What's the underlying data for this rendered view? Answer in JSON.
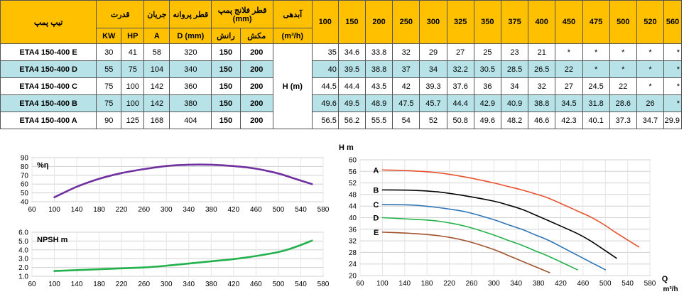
{
  "table": {
    "headers": {
      "model": "تیپ پمپ",
      "power": "قدرت",
      "current": "جریان",
      "impeller": "قطر پروانه",
      "flange": "قطر فلانج پمپ (mm)",
      "flow": "آبدهی",
      "kw": "KW",
      "hp": "HP",
      "amp": "A",
      "impeller_unit": "D (mm)",
      "discharge": "رانش",
      "suction": "مکش",
      "flow_unit": "(m³/h)",
      "flows": [
        "100",
        "150",
        "200",
        "250",
        "300",
        "325",
        "350",
        "375",
        "400",
        "450",
        "475",
        "500",
        "520",
        "560"
      ]
    },
    "head_label": "H (m)",
    "rows": [
      {
        "model": "ETA4 150-400 E",
        "kw": "30",
        "hp": "41",
        "a": "58",
        "d": "320",
        "discharge": "150",
        "suction": "200",
        "h": [
          "35",
          "34.6",
          "33.8",
          "32",
          "29",
          "27",
          "25",
          "23",
          "21",
          "*",
          "*",
          "*",
          "*",
          "*"
        ]
      },
      {
        "model": "ETA4 150-400 D",
        "kw": "55",
        "hp": "75",
        "a": "104",
        "d": "340",
        "discharge": "150",
        "suction": "200",
        "h": [
          "40",
          "39.5",
          "38.8",
          "37",
          "34",
          "32.2",
          "30.5",
          "28.5",
          "26.5",
          "22",
          "*",
          "*",
          "*",
          "*"
        ]
      },
      {
        "model": "ETA4 150-400 C",
        "kw": "75",
        "hp": "100",
        "a": "142",
        "d": "360",
        "discharge": "150",
        "suction": "200",
        "h": [
          "44.5",
          "44.4",
          "43.5",
          "42",
          "39.3",
          "37.6",
          "36",
          "34",
          "32",
          "27",
          "24.5",
          "22",
          "*",
          "*"
        ]
      },
      {
        "model": "ETA4 150-400 B",
        "kw": "75",
        "hp": "100",
        "a": "142",
        "d": "380",
        "discharge": "150",
        "suction": "200",
        "h": [
          "49.6",
          "49.5",
          "48.9",
          "47.5",
          "45.7",
          "44.4",
          "42.9",
          "40.9",
          "38.8",
          "34.5",
          "31.8",
          "28.6",
          "26",
          "*"
        ]
      },
      {
        "model": "ETA4 150-400 A",
        "kw": "90",
        "hp": "125",
        "a": "168",
        "d": "404",
        "discharge": "150",
        "suction": "200",
        "h": [
          "56.5",
          "56.2",
          "55.5",
          "54",
          "52",
          "50.8",
          "49.6",
          "48.2",
          "46.6",
          "42.3",
          "40.1",
          "37.3",
          "34.7",
          "29.9"
        ]
      }
    ]
  },
  "chart_data": [
    {
      "type": "line",
      "title": "%η",
      "xlim": [
        60,
        580
      ],
      "xticks": [
        60,
        100,
        140,
        180,
        220,
        260,
        300,
        340,
        380,
        420,
        460,
        500,
        540,
        580
      ],
      "ylim": [
        40,
        90
      ],
      "yticks": [
        40,
        50,
        60,
        70,
        80,
        90
      ],
      "series": [
        {
          "color": "#7030a0",
          "x": [
            100,
            140,
            180,
            220,
            260,
            300,
            340,
            380,
            420,
            460,
            500,
            530,
            560
          ],
          "y": [
            45,
            57,
            66,
            72.5,
            77,
            80.5,
            82,
            82,
            80.5,
            77.5,
            72,
            66,
            60
          ]
        }
      ]
    },
    {
      "type": "line",
      "title": "NPSH m",
      "xlim": [
        60,
        580
      ],
      "xticks": [
        60,
        100,
        140,
        180,
        220,
        260,
        300,
        340,
        380,
        420,
        460,
        500,
        540,
        580
      ],
      "ylim": [
        1.0,
        6.0
      ],
      "ylabels": [
        "1.0",
        "2.0",
        "3.0",
        "4.0",
        "5.0",
        "6.0"
      ],
      "series": [
        {
          "color": "#22b14c",
          "x": [
            100,
            140,
            180,
            220,
            260,
            300,
            340,
            380,
            420,
            460,
            500,
            520,
            540,
            560
          ],
          "y": [
            1.6,
            1.7,
            1.8,
            1.9,
            2.0,
            2.2,
            2.45,
            2.7,
            2.95,
            3.3,
            3.75,
            4.1,
            4.55,
            5.05
          ]
        }
      ]
    },
    {
      "type": "line",
      "ylabel": "H m",
      "xlabel": "Q",
      "xunit": "m³/h",
      "xlim": [
        60,
        580
      ],
      "xticks": [
        60,
        100,
        140,
        180,
        220,
        260,
        300,
        340,
        380,
        420,
        460,
        500,
        540,
        580
      ],
      "ylim": [
        20,
        60
      ],
      "yticks": [
        20,
        24,
        28,
        32,
        36,
        40,
        44,
        48,
        52,
        56,
        60
      ],
      "series": [
        {
          "name": "A",
          "color": "#e8502c",
          "x": [
            100,
            150,
            200,
            250,
            300,
            325,
            350,
            375,
            400,
            450,
            475,
            500,
            520,
            560
          ],
          "y": [
            56.5,
            56.2,
            55.5,
            54,
            52,
            50.8,
            49.6,
            48.2,
            46.6,
            42.3,
            40.1,
            37.3,
            34.7,
            29.9
          ]
        },
        {
          "name": "B",
          "color": "#000000",
          "x": [
            100,
            150,
            200,
            250,
            300,
            325,
            350,
            375,
            400,
            450,
            475,
            500,
            520
          ],
          "y": [
            49.6,
            49.5,
            48.9,
            47.5,
            45.7,
            44.4,
            42.9,
            40.9,
            38.8,
            34.5,
            31.8,
            28.6,
            26
          ]
        },
        {
          "name": "C",
          "color": "#2e75b6",
          "x": [
            100,
            150,
            200,
            250,
            300,
            325,
            350,
            375,
            400,
            450,
            475,
            500
          ],
          "y": [
            44.5,
            44.4,
            43.5,
            42,
            39.3,
            37.6,
            36,
            34,
            32,
            27,
            24.5,
            22
          ]
        },
        {
          "name": "D",
          "color": "#22b14c",
          "x": [
            100,
            150,
            200,
            250,
            300,
            325,
            350,
            375,
            400,
            450
          ],
          "y": [
            40,
            39.5,
            38.8,
            37,
            34,
            32.2,
            30.5,
            28.5,
            26.5,
            22
          ]
        },
        {
          "name": "E",
          "color": "#a0522d",
          "x": [
            100,
            150,
            200,
            250,
            300,
            325,
            350,
            375,
            400
          ],
          "y": [
            35,
            34.6,
            33.8,
            32,
            29,
            27,
            25,
            23,
            21
          ]
        }
      ]
    }
  ]
}
